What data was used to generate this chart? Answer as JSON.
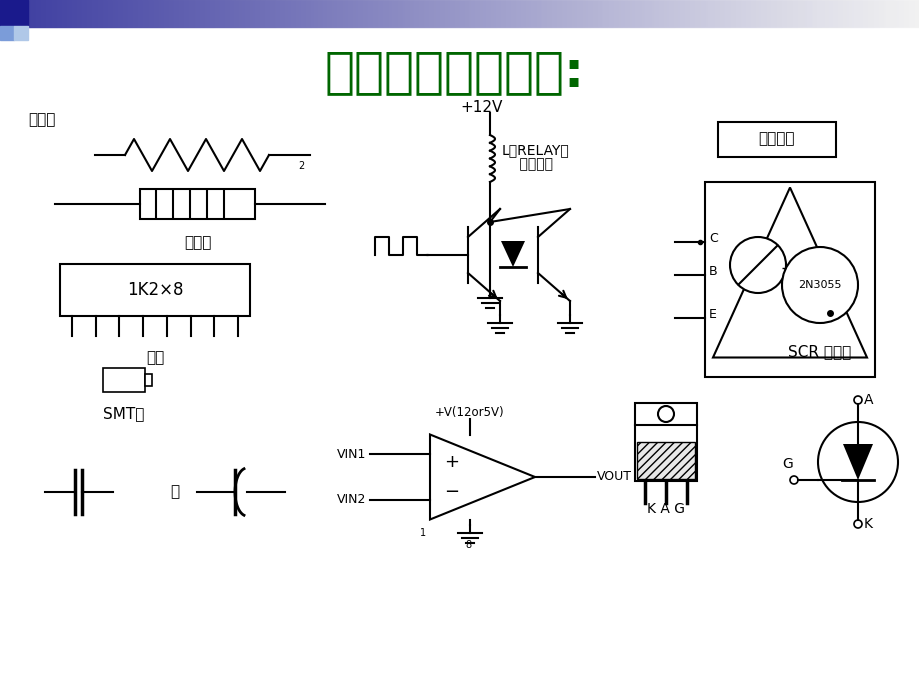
{
  "title": "从電子四要素談起:",
  "title_color": "#006600",
  "title_fontsize": 36,
  "bg_color": "#ffffff",
  "label_fuhao": "符號為",
  "label_changxing": "長條型",
  "label_paizu": "排阻",
  "label_smt": "SMT型",
  "label_or": "或",
  "label_l_relay": "L：RELAY或",
  "label_l_inject": "    噴油和等",
  "label_12v": "+12V",
  "label_gonglv": "功率晶體",
  "label_2n3055": "2N3055",
  "label_scr_title": "SCR 閘晶體",
  "label_vout": "VOUT",
  "label_vin1": "VIN1",
  "label_vin2": "VIN2",
  "label_vcc": "+V(12or5V)",
  "label_kag": "K A G",
  "label_cbe_c": "C",
  "label_cbe_b": "B",
  "label_cbe_e": "E",
  "label_scr_a": "A",
  "label_scr_g": "G",
  "label_scr_k": "K",
  "label_1k2x8": "1K2×8",
  "label_vcc_small": "8"
}
